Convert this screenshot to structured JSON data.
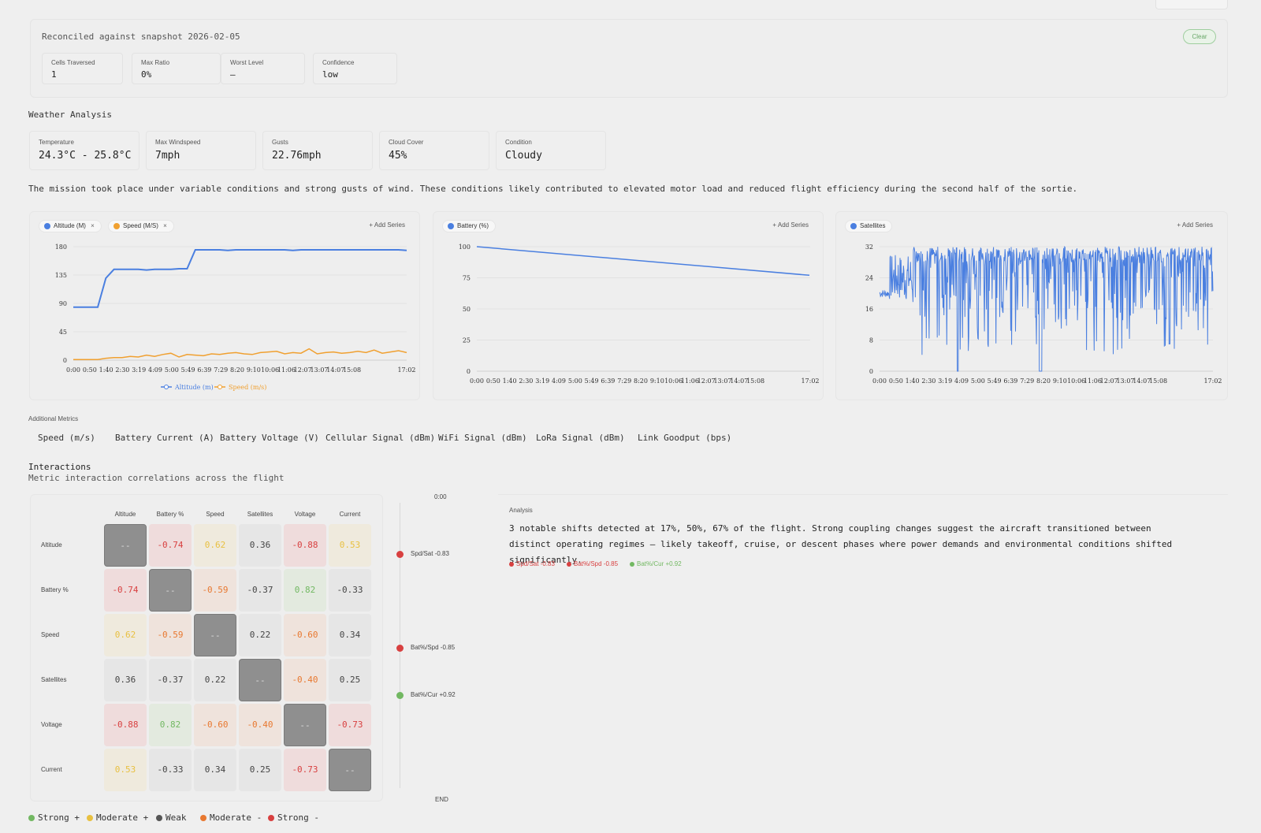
{
  "reconcile": {
    "title": "Reconciled against snapshot 2026-02-05",
    "clear_label": "Clear",
    "stats": [
      {
        "label": "Cells Traversed",
        "value": "1"
      },
      {
        "label": "Max Ratio",
        "value": "0%"
      },
      {
        "label": "Worst Level",
        "value": "—"
      },
      {
        "label": "Confidence",
        "value": "low"
      }
    ]
  },
  "weather": {
    "title": "Weather Analysis",
    "cards": [
      {
        "label": "Temperature",
        "value": "24.3°C - 25.8°C"
      },
      {
        "label": "Max Windspeed",
        "value": "7mph"
      },
      {
        "label": "Gusts",
        "value": "22.76mph"
      },
      {
        "label": "Cloud Cover",
        "value": "45%"
      },
      {
        "label": "Condition",
        "value": "Cloudy"
      }
    ],
    "summary": "The mission took place under variable conditions and strong gusts of wind. These conditions likely contributed to elevated motor load and reduced flight efficiency during the second half of the sortie."
  },
  "charts_ui": {
    "add_series_label": "+ Add Series",
    "chip_close": "×",
    "chips": [
      {
        "label": "Altitude (M)",
        "color": "#4a7fe0",
        "closable": true
      },
      {
        "label": "Speed (M/S)",
        "color": "#f0a030",
        "closable": true
      },
      {
        "label": "Battery (%)",
        "color": "#4a7fe0",
        "closable": false
      },
      {
        "label": "Satellites",
        "color": "#4a7fe0",
        "closable": false
      }
    ]
  },
  "chart_data": [
    {
      "type": "line",
      "x_ticks": [
        "0:00",
        "0:50",
        "1:40",
        "2:30",
        "3:19",
        "4:09",
        "5:00",
        "5:49",
        "6:39",
        "7:29",
        "8:20",
        "9:10",
        "10:06",
        "11:06",
        "12:07",
        "13:07",
        "14:07",
        "15:08",
        "17:02"
      ],
      "y_ticks": [
        "0",
        "45",
        "90",
        "135",
        "180"
      ],
      "ylim": [
        0,
        180
      ],
      "legend": "bottom",
      "series": [
        {
          "name": "Altitude (m)",
          "color": "#4a7fe0",
          "values": [
            84,
            84,
            84,
            84,
            130,
            144,
            144,
            144,
            144,
            143,
            144,
            144,
            144,
            145,
            145,
            175,
            175,
            175,
            175,
            174,
            175,
            175,
            175,
            175,
            175,
            175,
            175,
            174,
            175,
            175,
            175,
            175,
            175,
            175,
            175,
            175,
            175,
            175,
            175,
            175,
            175,
            174
          ]
        },
        {
          "name": "Speed (m/s)",
          "color": "#f0a030",
          "values": [
            1,
            1,
            1,
            1,
            3,
            4,
            4,
            6,
            5,
            8,
            6,
            9,
            11,
            5,
            9,
            8,
            7,
            10,
            9,
            11,
            12,
            10,
            9,
            12,
            13,
            14,
            10,
            12,
            11,
            18,
            10,
            12,
            13,
            11,
            12,
            14,
            12,
            16,
            11,
            13,
            15,
            12
          ]
        }
      ]
    },
    {
      "type": "line",
      "x_ticks": [
        "0:00",
        "0:50",
        "1:40",
        "2:30",
        "3:19",
        "4:09",
        "5:00",
        "5:49",
        "6:39",
        "7:29",
        "8:20",
        "9:10",
        "10:06",
        "11:06",
        "12:07",
        "13:07",
        "14:07",
        "15:08",
        "17:02"
      ],
      "y_ticks": [
        "0",
        "25",
        "50",
        "75",
        "100"
      ],
      "ylim": [
        0,
        100
      ],
      "series": [
        {
          "name": "Battery (%)",
          "color": "#4a7fe0",
          "values": [
            100,
            77
          ]
        }
      ]
    },
    {
      "type": "line",
      "x_ticks": [
        "0:00",
        "0:50",
        "1:40",
        "2:30",
        "3:19",
        "4:09",
        "5:00",
        "5:49",
        "6:39",
        "7:29",
        "8:20",
        "9:10",
        "10:06",
        "11:06",
        "12:07",
        "13:07",
        "14:07",
        "15:08",
        "17:02"
      ],
      "y_ticks": [
        "0",
        "8",
        "16",
        "24",
        "32"
      ],
      "ylim": [
        0,
        32
      ],
      "series": [
        {
          "name": "Satellites",
          "color": "#4a7fe0"
        }
      ]
    }
  ],
  "additional_metrics": {
    "title": "Additional Metrics",
    "items": [
      "Speed (m/s)",
      "Battery Current (A)",
      "Battery Voltage (V)",
      "Cellular Signal (dBm)",
      "WiFi Signal (dBm)",
      "LoRa Signal (dBm)",
      "Link Goodput (bps)"
    ]
  },
  "interactions": {
    "title": "Interactions",
    "subtitle": "Metric interaction correlations across the flight",
    "columns": [
      "Altitude",
      "Battery %",
      "Speed",
      "Satellites",
      "Voltage",
      "Current"
    ],
    "rows": [
      "Altitude",
      "Battery %",
      "Speed",
      "Satellites",
      "Voltage",
      "Current"
    ],
    "diag_label": "--",
    "matrix": [
      [
        null,
        -0.74,
        0.62,
        0.36,
        -0.88,
        0.53
      ],
      [
        -0.74,
        null,
        -0.59,
        -0.37,
        0.82,
        -0.33
      ],
      [
        0.62,
        -0.59,
        null,
        0.22,
        -0.6,
        0.34
      ],
      [
        0.36,
        -0.37,
        0.22,
        null,
        -0.4,
        0.25
      ],
      [
        -0.88,
        0.82,
        -0.6,
        -0.4,
        null,
        -0.73
      ],
      [
        0.53,
        -0.33,
        0.34,
        0.25,
        -0.73,
        null
      ]
    ],
    "timeline": {
      "start": "0:00",
      "end": "END",
      "events": [
        {
          "label": "Spd/Sat -0.83",
          "color": "#d84040",
          "pos": 0.17
        },
        {
          "label": "Bat%/Spd -0.85",
          "color": "#d84040",
          "pos": 0.5
        },
        {
          "label": "Bat%/Cur +0.92",
          "color": "#72b862",
          "pos": 0.67
        }
      ]
    },
    "analysis": {
      "label": "Analysis",
      "text": "3 notable shifts detected at 17%, 50%, 67% of the flight. Strong coupling changes suggest the aircraft transitioned between distinct operating regimes — likely takeoff, cruise, or descent phases where power demands and environmental conditions shifted significantly.",
      "tags": [
        {
          "label": "Spd/Sat -0.83",
          "color": "#d84040"
        },
        {
          "label": "Bat%/Spd -0.85",
          "color": "#d84040"
        },
        {
          "label": "Bat%/Cur +0.92",
          "color": "#72b862"
        }
      ]
    },
    "legend": [
      {
        "label": "Strong +",
        "color": "#72b862"
      },
      {
        "label": "Moderate +",
        "color": "#e8c040"
      },
      {
        "label": "Weak",
        "color": "#555555"
      },
      {
        "label": "Moderate -",
        "color": "#e87830"
      },
      {
        "label": "Strong -",
        "color": "#d84040"
      }
    ]
  }
}
